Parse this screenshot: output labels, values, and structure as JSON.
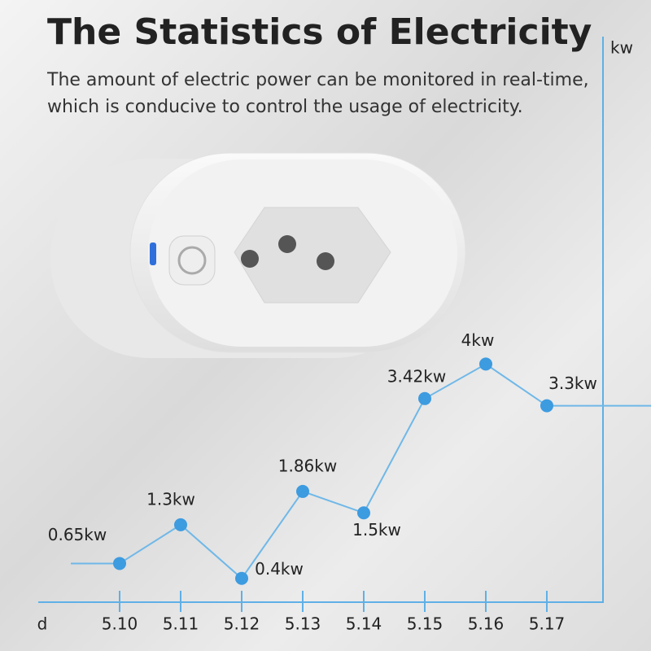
{
  "chart_data": {
    "type": "line",
    "title": "The Statistics of Electricity",
    "subtitle": "The amount of electric power can be monitored in real-time, which is conducive to control the usage of electricity.",
    "y_label": "kw",
    "x_label": "d",
    "categories": [
      "5.10",
      "5.11",
      "5.12",
      "5.13",
      "5.14",
      "5.15",
      "5.16",
      "5.17"
    ],
    "values": [
      0.65,
      1.3,
      0.4,
      1.86,
      1.5,
      3.42,
      4,
      3.3
    ],
    "value_labels": [
      "0.65kw",
      "1.3kw",
      "0.4kw",
      "1.86kw",
      "1.5kw",
      "3.42kw",
      "4kw",
      "3.3kw"
    ],
    "ylim": [
      0,
      9.5
    ],
    "color": "#3d9be0"
  }
}
